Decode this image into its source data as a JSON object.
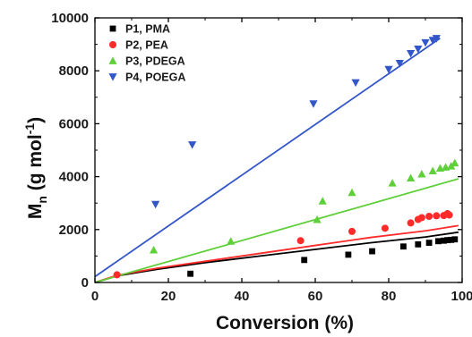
{
  "chart_data": {
    "type": "scatter",
    "title": "",
    "xlabel": "Conversion (%)",
    "ylabel_main": "M",
    "ylabel_sub": "n",
    "ylabel_rest": " (g mol",
    "ylabel_sup": "-1",
    "ylabel_close": ")",
    "xlim": [
      0,
      100
    ],
    "ylim": [
      0,
      10000
    ],
    "xticks": [
      "0",
      "20",
      "40",
      "60",
      "80",
      "100"
    ],
    "yticks": [
      "0",
      "2000",
      "4000",
      "6000",
      "8000",
      "10000"
    ],
    "legend_position": "top-left",
    "series": [
      {
        "name": "P1, PMA",
        "color": "#000000",
        "marker": "square",
        "points": [
          [
            26,
            330
          ],
          [
            57,
            850
          ],
          [
            69,
            1050
          ],
          [
            75.5,
            1180
          ],
          [
            84,
            1360
          ],
          [
            88,
            1440
          ],
          [
            91,
            1500
          ],
          [
            93.5,
            1560
          ],
          [
            95,
            1580
          ],
          [
            96,
            1600
          ],
          [
            97,
            1610
          ],
          [
            98,
            1630
          ]
        ],
        "fit": [
          [
            0,
            0
          ],
          [
            6,
            250
          ],
          [
            17,
            500
          ],
          [
            30,
            750
          ],
          [
            45,
            1000
          ],
          [
            60,
            1250
          ],
          [
            75,
            1500
          ],
          [
            90,
            1720
          ],
          [
            99,
            1900
          ]
        ]
      },
      {
        "name": "P2, PEA",
        "color": "#ff2a2a",
        "marker": "circle",
        "points": [
          [
            6,
            290
          ],
          [
            56,
            1580
          ],
          [
            70,
            1930
          ],
          [
            79,
            2050
          ],
          [
            86,
            2250
          ],
          [
            88,
            2380
          ],
          [
            89,
            2450
          ],
          [
            91,
            2500
          ],
          [
            93,
            2520
          ],
          [
            95,
            2530
          ],
          [
            96,
            2600
          ],
          [
            96.5,
            2550
          ]
        ],
        "fit": [
          [
            0,
            0
          ],
          [
            6,
            270
          ],
          [
            17,
            540
          ],
          [
            30,
            800
          ],
          [
            45,
            1100
          ],
          [
            60,
            1400
          ],
          [
            75,
            1700
          ],
          [
            90,
            1950
          ],
          [
            99,
            2150
          ]
        ]
      },
      {
        "name": "P3, PDEGA",
        "color": "#60d03a",
        "marker": "triangle-up",
        "points": [
          [
            16,
            1230
          ],
          [
            37,
            1560
          ],
          [
            60.5,
            2380
          ],
          [
            62,
            3080
          ],
          [
            70,
            3400
          ],
          [
            81,
            3760
          ],
          [
            86,
            3950
          ],
          [
            89,
            4100
          ],
          [
            92,
            4220
          ],
          [
            94,
            4320
          ],
          [
            95.5,
            4360
          ],
          [
            97,
            4400
          ],
          [
            98,
            4520
          ]
        ],
        "fit": [
          [
            0,
            0
          ],
          [
            99,
            3920
          ]
        ]
      },
      {
        "name": "P4, POEGA",
        "color": "#3356c8",
        "marker": "triangle-down",
        "points": [
          [
            16.5,
            2950
          ],
          [
            26.5,
            5200
          ],
          [
            59.5,
            6750
          ],
          [
            71,
            7550
          ],
          [
            80,
            8050
          ],
          [
            83,
            8280
          ],
          [
            86,
            8650
          ],
          [
            88,
            8820
          ],
          [
            90,
            9060
          ],
          [
            92,
            9150
          ],
          [
            93,
            9220
          ]
        ],
        "fit": [
          [
            0,
            220
          ],
          [
            94,
            9230
          ]
        ]
      }
    ]
  }
}
